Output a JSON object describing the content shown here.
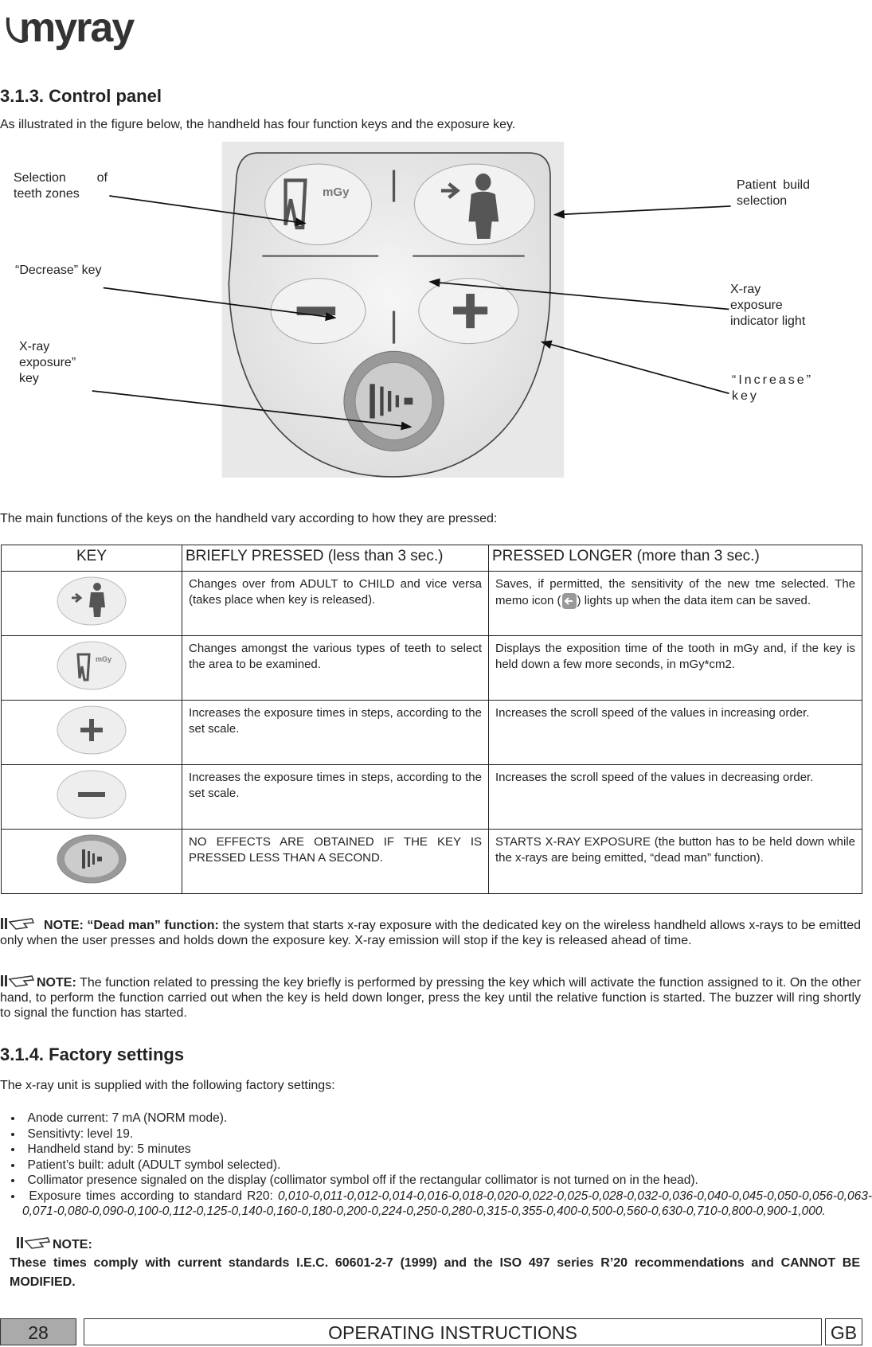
{
  "header": {
    "logo": "myray"
  },
  "control_panel": {
    "heading": "3.1.3. Control panel",
    "intro": "As illustrated in the figure below, the handheld has four function keys and the exposure key.",
    "figure_labels": [
      "Selection of teeth zones",
      "Patient build selection",
      "“Decrease” key",
      "X-ray exposure indicator light",
      "X-ray exposure” key",
      "“Increase” key"
    ],
    "table_intro": "The main functions of the keys on the handheld vary according to how they are pressed:"
  },
  "table": {
    "headers": [
      "KEY",
      "BRIEFLY PRESSED (less than 3 sec.)",
      "PRESSED LONGER (more than 3 sec.)"
    ],
    "rows": [
      {
        "brief": "Changes over from ADULT to CHILD and vice versa  (takes place when key is released).",
        "long": "Saves, if permitted, the sensitivity of the new tme selected. The memo icon (",
        "long_after": ") lights up when the data item can be saved."
      },
      {
        "brief": "Changes amongst the various types of teeth to select the area to be examined.",
        "long": "Displays the exposition time of the tooth in mGy and, if the key is held down a few more seconds, in mGy*cm2."
      },
      {
        "brief": "Increases the exposure times in steps, according to the set scale.",
        "long": "Increases the scroll speed of the values in increasing order."
      },
      {
        "brief": "Increases the exposure times in steps, according to the set scale.",
        "long": "Increases the scroll speed of the values in decreasing order."
      },
      {
        "brief": "NO EFFECTS ARE OBTAINED IF THE KEY IS PRESSED LESS THAN A SECOND.",
        "long": "STARTS X-RAY EXPOSURE  (the button has to be held down while the x-rays are being emitted, “dead man” function)."
      }
    ]
  },
  "notes": [
    {
      "label": "NOTE: “Dead man” function:",
      "text": "the system that starts x-ray exposure with the dedicated key on the wireless handheld  allows x-rays to be emitted only when the user presses and holds down the exposure key. X-ray emission will stop if the key is released ahead of time."
    },
    {
      "label": "NOTE:",
      "text": "The function related to pressing the key briefly is performed by pressing the key which will activate the function assigned to it. On the other hand, to perform the function carried out  when the key is held down longer, press the key until the relative function is started. The buzzer will ring shortly to signal the function has started."
    }
  ],
  "factory": {
    "heading": "3.1.4. Factory settings",
    "intro": "The x-ray unit is supplied with the following factory settings:",
    "bullets": [
      "Anode current: 7 mA (NORM mode).",
      "Sensitivty: level 19.",
      "Handheld stand by: 5 minutes",
      "Patient’s built: adult  (ADULT symbol selected).",
      "Collimator presence signaled on the display (collimator symbol off if the rectangular collimator is not turned on in the head)."
    ],
    "exposure": {
      "text": "Exposure times according to standard R20:",
      "values": "0,010-0,011-0,012-0,014-0,016-0,018-0,020-0,022-0,025-0,028-0,032-0,036-0,040-0,045-0,050-0,056-0,063-0,071-0,080-0,090-0,100-0,112-0,125-0,140-0,160-0,180-0,200-0,224-0,250-0,280-0,315-0,355-0,400-0,500-0,560-0,630-0,710-0,800-0,900-1,000."
    },
    "note": {
      "label": "NOTE:",
      "text": "These times comply with current standards I.E.C. 60601-2-7 (1999) and the ISO 497 series R’20 recommendations and CANNOT BE MODIFIED."
    }
  },
  "footer": {
    "page": "28",
    "title": "OPERATING INSTRUCTIONS",
    "lang": "GB"
  }
}
